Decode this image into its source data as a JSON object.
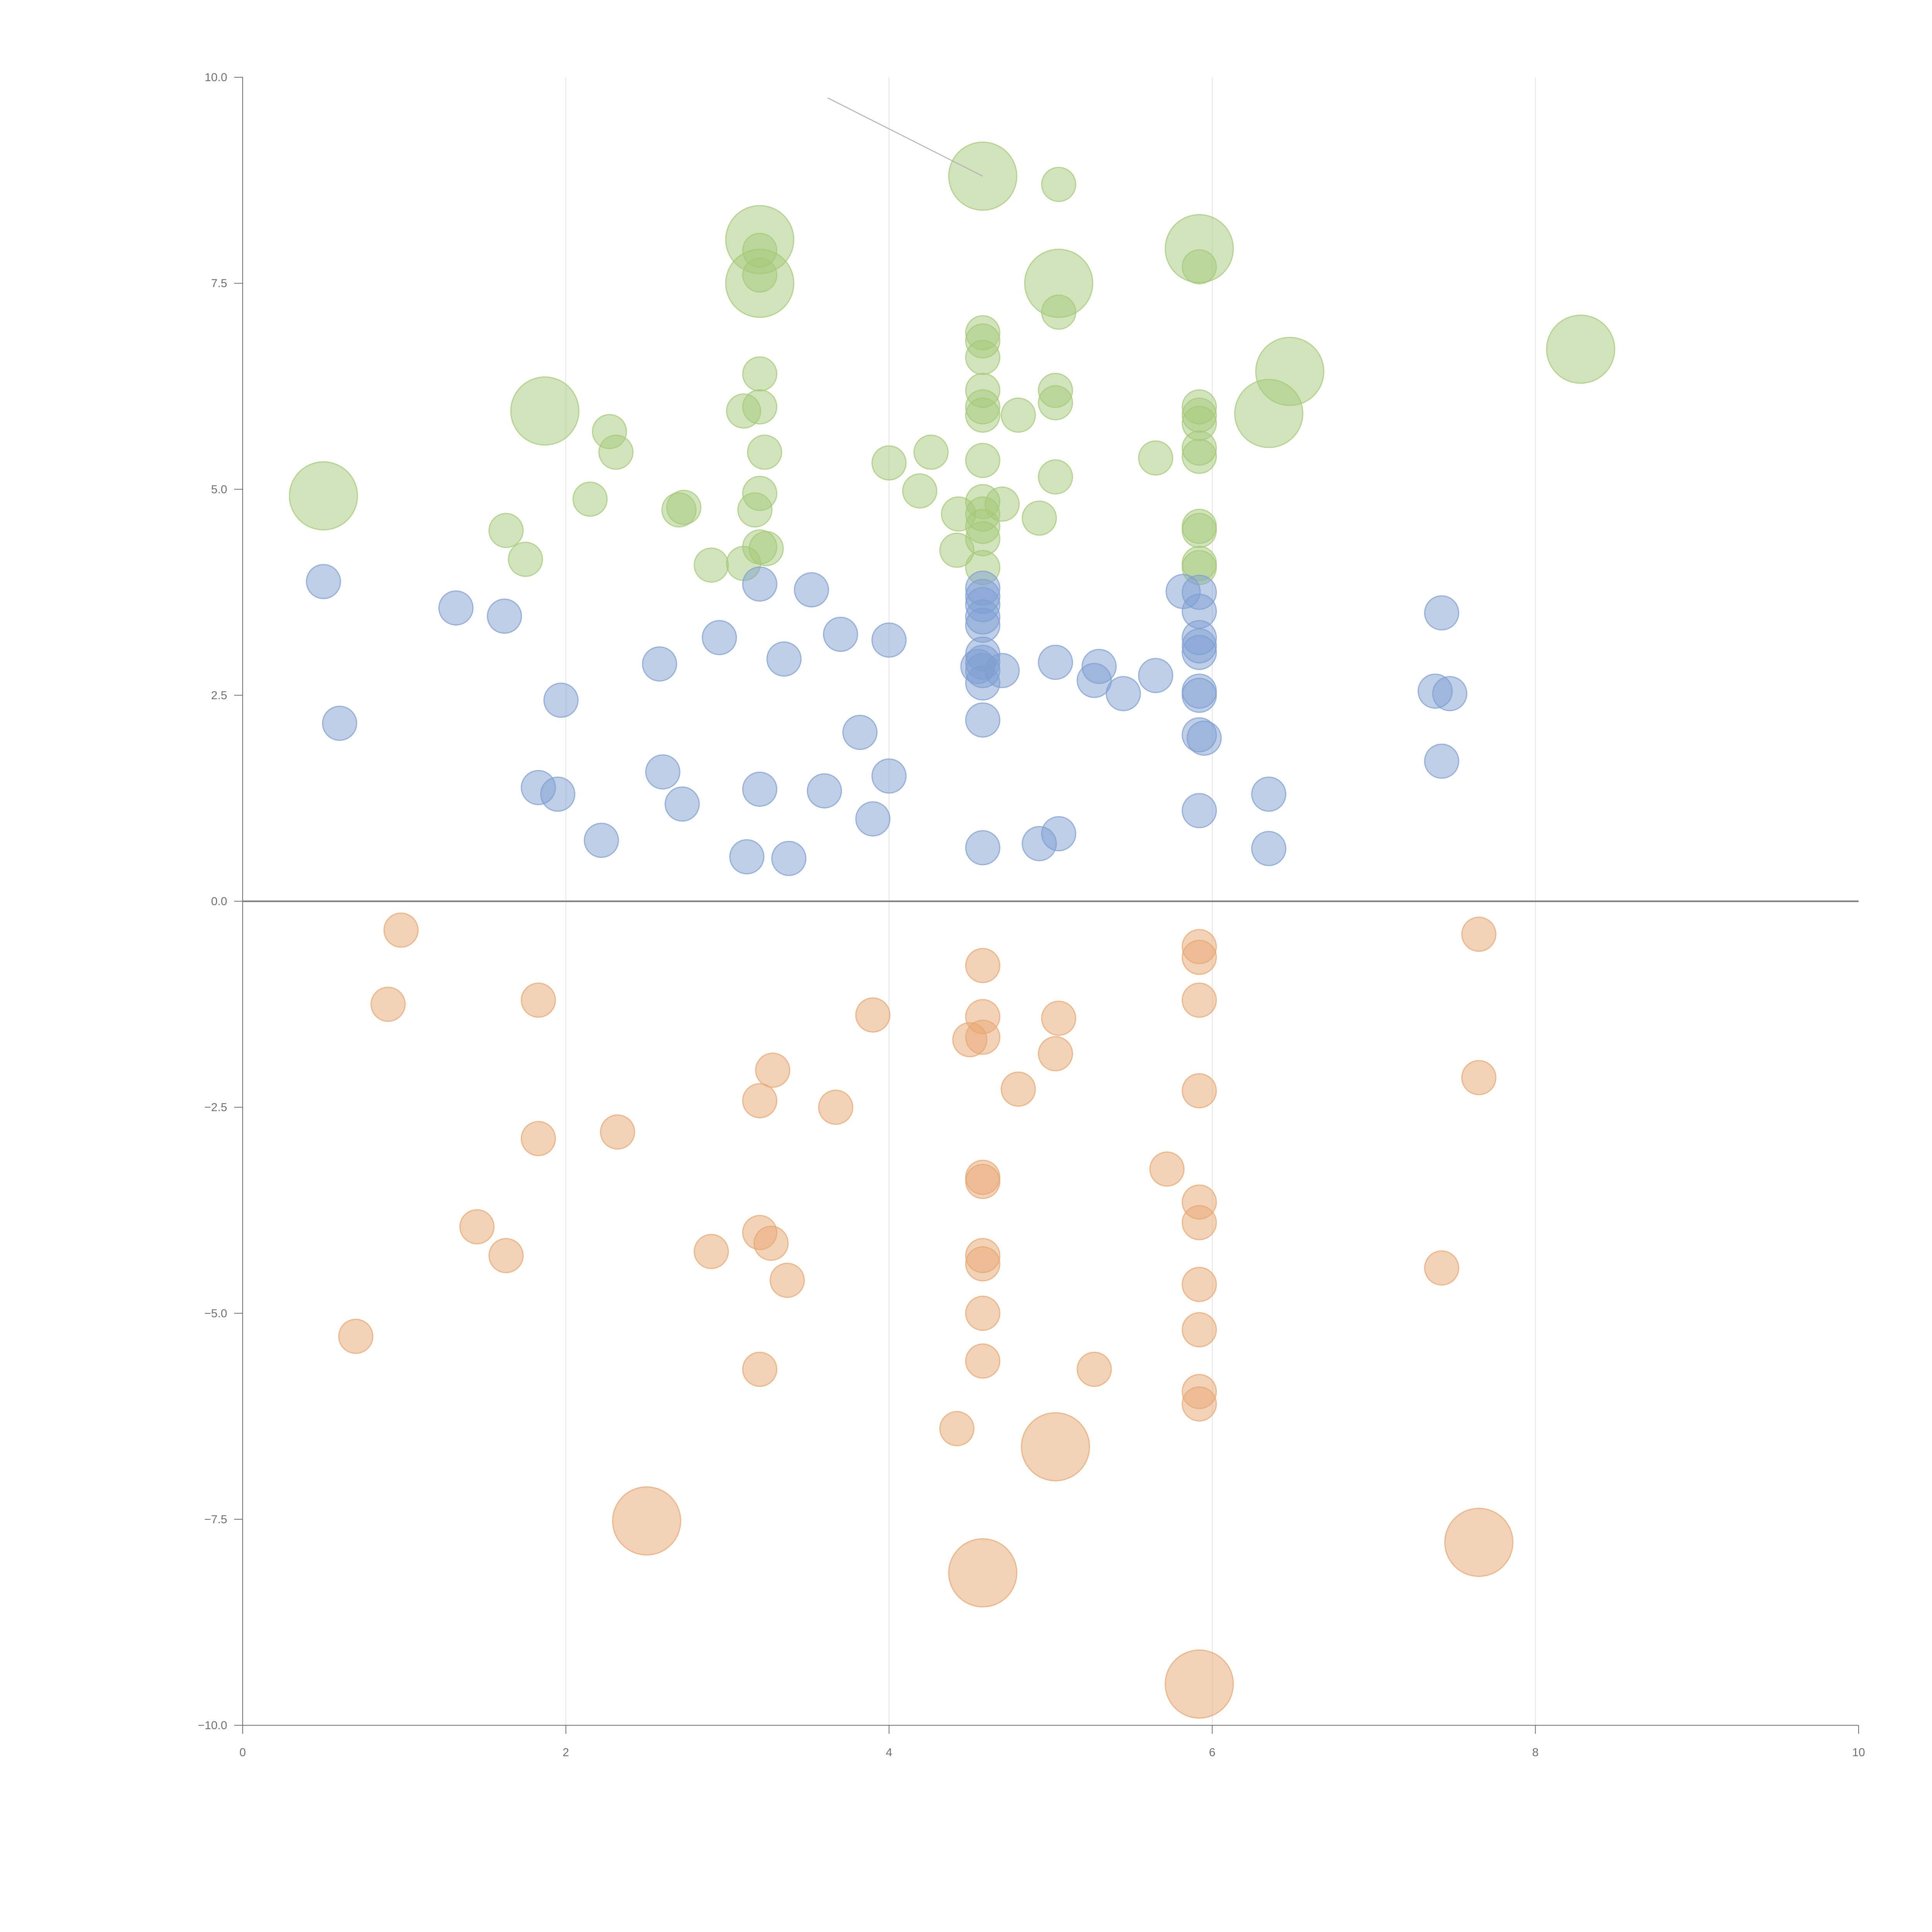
{
  "chart_data": {
    "type": "scatter",
    "title": "",
    "xlabel": "",
    "ylabel": "",
    "xlim": [
      0,
      10
    ],
    "ylim": [
      -10,
      10
    ],
    "x_ticks": [
      0,
      2,
      4,
      6,
      8,
      10
    ],
    "x_tick_labels": [
      "0",
      "2",
      "4",
      "6",
      "8",
      "10"
    ],
    "y_ticks": [
      10,
      7.5,
      5,
      2.5,
      0,
      -2.5,
      -5,
      -7.5,
      -10
    ],
    "y_tick_labels": [
      "10.0",
      "7.5",
      "5.0",
      "2.5",
      "0.0",
      "−2.5",
      "−5.0",
      "−7.5",
      "−10.0"
    ],
    "grid": "vertical",
    "legend": "none",
    "reference_line_y": 0,
    "colors": {
      "green": "#a6c97a",
      "blue": "#7f9fd1",
      "orange": "#e8a772",
      "axis": "#6f6f6f"
    },
    "series": [
      {
        "name": "green",
        "color": "#a6c97a",
        "size": "small",
        "points": [
          [
            5.05,
            8.7
          ],
          [
            3.2,
            7.9
          ],
          [
            3.2,
            7.6
          ],
          [
            5.05,
            7.15
          ],
          [
            5.92,
            7.7
          ],
          [
            4.58,
            6.9
          ],
          [
            4.58,
            6.8
          ],
          [
            4.58,
            6.6
          ],
          [
            4.58,
            6.2
          ],
          [
            4.58,
            6.0
          ],
          [
            4.58,
            5.9
          ],
          [
            3.2,
            6.4
          ],
          [
            3.2,
            6.0
          ],
          [
            3.1,
            5.95
          ],
          [
            3.23,
            5.45
          ],
          [
            2.27,
            5.7
          ],
          [
            2.31,
            5.45
          ],
          [
            3.2,
            4.95
          ],
          [
            3.17,
            4.75
          ],
          [
            3.2,
            4.3
          ],
          [
            3.24,
            4.28
          ],
          [
            2.15,
            4.88
          ],
          [
            2.7,
            4.75
          ],
          [
            2.73,
            4.78
          ],
          [
            1.63,
            4.5
          ],
          [
            1.75,
            4.15
          ],
          [
            2.9,
            4.08
          ],
          [
            3.1,
            4.1
          ],
          [
            4.0,
            5.32
          ],
          [
            4.26,
            5.45
          ],
          [
            4.19,
            4.98
          ],
          [
            4.43,
            4.7
          ],
          [
            4.42,
            4.26
          ],
          [
            4.58,
            5.35
          ],
          [
            4.58,
            4.85
          ],
          [
            4.58,
            4.7
          ],
          [
            4.58,
            4.55
          ],
          [
            4.58,
            4.4
          ],
          [
            4.58,
            4.05
          ],
          [
            4.7,
            4.82
          ],
          [
            4.8,
            5.9
          ],
          [
            5.03,
            6.2
          ],
          [
            5.03,
            6.05
          ],
          [
            5.03,
            5.15
          ],
          [
            4.93,
            4.65
          ],
          [
            5.92,
            6.0
          ],
          [
            5.92,
            5.9
          ],
          [
            5.92,
            5.8
          ],
          [
            5.92,
            5.5
          ],
          [
            5.92,
            5.4
          ],
          [
            5.92,
            4.55
          ],
          [
            5.92,
            4.5
          ],
          [
            5.92,
            4.1
          ],
          [
            5.92,
            4.05
          ],
          [
            5.65,
            5.38
          ]
        ]
      },
      {
        "name": "green-large",
        "color": "#a6c97a",
        "size": "large",
        "points": [
          [
            0.5,
            4.92
          ],
          [
            1.87,
            5.95
          ],
          [
            3.2,
            8.03
          ],
          [
            3.2,
            7.5
          ],
          [
            4.58,
            8.8
          ],
          [
            5.05,
            7.5
          ],
          [
            5.92,
            7.92
          ],
          [
            6.35,
            5.92
          ],
          [
            6.48,
            6.43
          ],
          [
            8.28,
            6.7
          ]
        ]
      },
      {
        "name": "blue",
        "color": "#7f9fd1",
        "size": "small",
        "points": [
          [
            0.5,
            3.88
          ],
          [
            0.6,
            2.16
          ],
          [
            1.32,
            3.56
          ],
          [
            1.62,
            3.46
          ],
          [
            1.83,
            1.38
          ],
          [
            1.95,
            1.3
          ],
          [
            1.97,
            2.44
          ],
          [
            2.22,
            0.74
          ],
          [
            2.58,
            2.88
          ],
          [
            2.6,
            1.57
          ],
          [
            2.72,
            1.18
          ],
          [
            2.95,
            3.2
          ],
          [
            3.12,
            0.54
          ],
          [
            3.2,
            3.85
          ],
          [
            3.2,
            1.36
          ],
          [
            3.35,
            2.94
          ],
          [
            3.38,
            0.52
          ],
          [
            3.52,
            3.78
          ],
          [
            3.6,
            1.34
          ],
          [
            3.7,
            3.24
          ],
          [
            3.82,
            2.05
          ],
          [
            3.9,
            1.0
          ],
          [
            4.0,
            3.17
          ],
          [
            4.0,
            1.52
          ],
          [
            4.58,
            3.8
          ],
          [
            4.58,
            3.7
          ],
          [
            4.58,
            3.6
          ],
          [
            4.58,
            3.45
          ],
          [
            4.58,
            3.35
          ],
          [
            4.58,
            3.0
          ],
          [
            4.58,
            2.9
          ],
          [
            4.58,
            2.8
          ],
          [
            4.58,
            2.65
          ],
          [
            4.58,
            2.2
          ],
          [
            4.58,
            0.65
          ],
          [
            4.55,
            2.85
          ],
          [
            4.7,
            2.8
          ],
          [
            4.93,
            0.7
          ],
          [
            5.03,
            2.9
          ],
          [
            5.05,
            0.82
          ],
          [
            5.27,
            2.68
          ],
          [
            5.3,
            2.85
          ],
          [
            5.45,
            2.52
          ],
          [
            5.65,
            2.74
          ],
          [
            5.92,
            3.75
          ],
          [
            5.82,
            3.76
          ],
          [
            5.92,
            3.52
          ],
          [
            5.92,
            3.2
          ],
          [
            5.92,
            3.1
          ],
          [
            5.92,
            3.02
          ],
          [
            5.92,
            2.55
          ],
          [
            5.92,
            2.5
          ],
          [
            5.92,
            2.02
          ],
          [
            5.95,
            1.98
          ],
          [
            5.92,
            1.1
          ],
          [
            6.35,
            1.3
          ],
          [
            6.35,
            0.64
          ],
          [
            7.42,
            3.5
          ],
          [
            7.38,
            2.55
          ],
          [
            7.47,
            2.52
          ],
          [
            7.42,
            1.7
          ]
        ]
      },
      {
        "name": "orange",
        "color": "#e8a772",
        "size": "small",
        "points": [
          [
            0.98,
            -0.35
          ],
          [
            0.9,
            -1.25
          ],
          [
            0.7,
            -5.28
          ],
          [
            1.45,
            -3.95
          ],
          [
            1.63,
            -4.3
          ],
          [
            1.83,
            -1.2
          ],
          [
            1.83,
            -2.88
          ],
          [
            2.32,
            -2.8
          ],
          [
            2.9,
            -4.25
          ],
          [
            3.2,
            -2.42
          ],
          [
            3.28,
            -2.05
          ],
          [
            3.2,
            -4.02
          ],
          [
            3.27,
            -4.15
          ],
          [
            3.37,
            -4.6
          ],
          [
            3.2,
            -5.68
          ],
          [
            3.67,
            -2.5
          ],
          [
            3.9,
            -1.38
          ],
          [
            4.58,
            -0.78
          ],
          [
            4.58,
            -1.4
          ],
          [
            4.58,
            -1.65
          ],
          [
            4.5,
            -1.68
          ],
          [
            4.58,
            -3.35
          ],
          [
            4.58,
            -3.4
          ],
          [
            4.58,
            -4.3
          ],
          [
            4.58,
            -4.4
          ],
          [
            4.58,
            -5.0
          ],
          [
            4.58,
            -5.58
          ],
          [
            4.42,
            -6.4
          ],
          [
            4.8,
            -2.28
          ],
          [
            5.05,
            -1.42
          ],
          [
            5.03,
            -1.85
          ],
          [
            5.27,
            -5.68
          ],
          [
            5.72,
            -3.25
          ],
          [
            5.92,
            -0.55
          ],
          [
            5.92,
            -0.68
          ],
          [
            5.92,
            -1.2
          ],
          [
            5.92,
            -2.3
          ],
          [
            5.92,
            -3.65
          ],
          [
            5.92,
            -3.9
          ],
          [
            5.92,
            -4.65
          ],
          [
            5.92,
            -5.2
          ],
          [
            5.92,
            -5.95
          ],
          [
            5.92,
            -6.1
          ],
          [
            7.65,
            -0.4
          ],
          [
            7.65,
            -2.14
          ],
          [
            7.42,
            -4.45
          ]
        ]
      },
      {
        "name": "orange-large",
        "color": "#e8a772",
        "size": "large",
        "points": [
          [
            2.5,
            -7.52
          ],
          [
            4.58,
            -8.15
          ],
          [
            5.03,
            -6.62
          ],
          [
            5.92,
            -9.5
          ],
          [
            7.65,
            -7.78
          ]
        ]
      }
    ],
    "annotations": [
      {
        "type": "connector",
        "from": [
          3.62,
          9.75
        ],
        "to": [
          4.58,
          8.8
        ]
      }
    ]
  }
}
